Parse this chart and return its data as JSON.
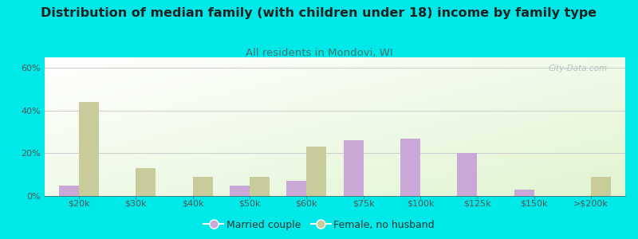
{
  "title": "Distribution of median family (with children under 18) income by family type",
  "subtitle": "All residents in Mondovi, WI",
  "categories": [
    "$20k",
    "$30k",
    "$40k",
    "$50k",
    "$60k",
    "$75k",
    "$100k",
    "$125k",
    "$150k",
    ">$200k"
  ],
  "married_couple": [
    5,
    0,
    0,
    5,
    7,
    26,
    27,
    20,
    3,
    0
  ],
  "female_no_husband": [
    44,
    13,
    9,
    9,
    23,
    0,
    0,
    0,
    0,
    9
  ],
  "married_color": "#c9a8d8",
  "female_color": "#c8cc9a",
  "background_color": "#00e8e8",
  "title_color": "#222222",
  "subtitle_color": "#507070",
  "tick_color": "#555555",
  "grid_color": "#cccccc",
  "watermark": "City-Data.com",
  "watermark_color": "#aabbbb",
  "title_fontsize": 11.5,
  "subtitle_fontsize": 9.5,
  "tick_fontsize": 8,
  "legend_fontsize": 9,
  "yticks": [
    0,
    20,
    40,
    60
  ],
  "ylabel_ticks": [
    "0%",
    "20%",
    "40%",
    "60%"
  ],
  "ylim": [
    0,
    65
  ],
  "bar_width": 0.35
}
